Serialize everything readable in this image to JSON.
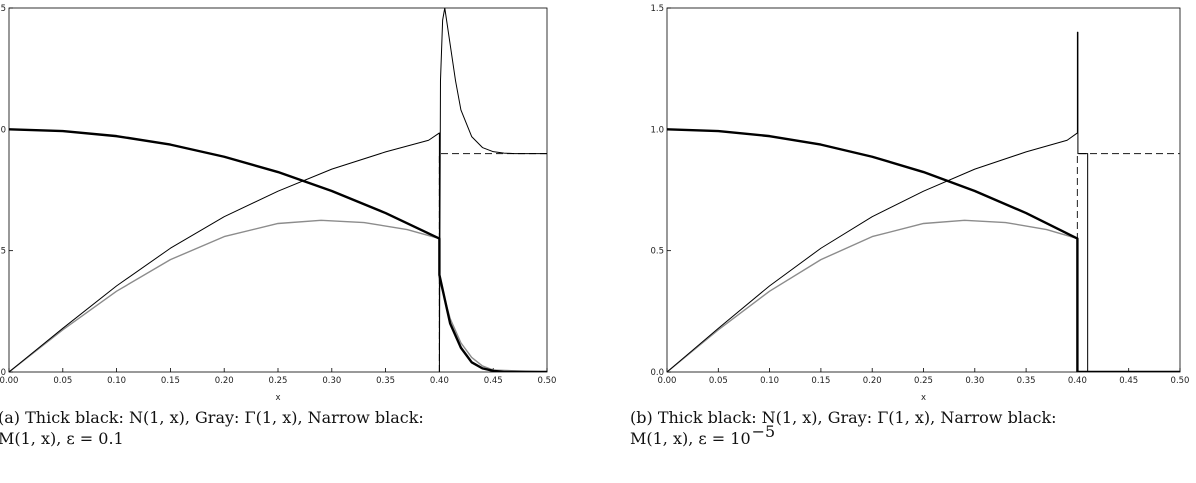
{
  "chart_data": [
    {
      "type": "line",
      "xlabel": "x",
      "ylabel": "",
      "xlim": [
        0.0,
        0.5
      ],
      "ylim": [
        0.0,
        1.5
      ],
      "xticks": [
        "0.00",
        "0.05",
        "0.10",
        "0.15",
        "0.20",
        "0.25",
        "0.30",
        "0.35",
        "0.40",
        "0.45",
        "0.50"
      ],
      "yticks": [
        "0.0",
        "0.5",
        "1.0",
        "1.5"
      ],
      "caption_line1": "(a) Thick black:  N(1, x),  Gray:  Γ(1, x),  Narrow black:",
      "caption_line2": "M(1, x),  ε = 0.1",
      "series": [
        {
          "key": "N",
          "style": "thick-black",
          "x": [
            0,
            0.05,
            0.1,
            0.15,
            0.2,
            0.25,
            0.3,
            0.35,
            0.4,
            0.4,
            0.405,
            0.41,
            0.42,
            0.43,
            0.44,
            0.45,
            0.46,
            0.5
          ],
          "y": [
            1.0,
            0.993,
            0.972,
            0.937,
            0.887,
            0.824,
            0.746,
            0.655,
            0.55,
            0.4,
            0.3,
            0.2,
            0.1,
            0.04,
            0.015,
            0.005,
            0.0,
            0.0
          ]
        },
        {
          "key": "Gamma",
          "style": "gray",
          "x": [
            0,
            0.05,
            0.1,
            0.15,
            0.2,
            0.25,
            0.29,
            0.33,
            0.37,
            0.4,
            0.4,
            0.405,
            0.41,
            0.42,
            0.43,
            0.44,
            0.45,
            0.5
          ],
          "y": [
            0.0,
            0.174,
            0.333,
            0.463,
            0.558,
            0.612,
            0.625,
            0.616,
            0.587,
            0.55,
            0.38,
            0.3,
            0.22,
            0.12,
            0.06,
            0.025,
            0.008,
            0.0
          ]
        },
        {
          "key": "M",
          "style": "narrow-black",
          "x": [
            0,
            0.05,
            0.1,
            0.15,
            0.2,
            0.25,
            0.3,
            0.35,
            0.39,
            0.4,
            0.4,
            0.401,
            0.403,
            0.405,
            0.41,
            0.415,
            0.42,
            0.43,
            0.44,
            0.45,
            0.46,
            0.47,
            0.5
          ],
          "y": [
            0.0,
            0.18,
            0.355,
            0.51,
            0.64,
            0.745,
            0.836,
            0.907,
            0.955,
            0.985,
            0.0,
            1.2,
            1.45,
            1.5,
            1.35,
            1.2,
            1.08,
            0.97,
            0.925,
            0.908,
            0.902,
            0.9,
            0.9
          ]
        },
        {
          "key": "M-dashed",
          "style": "dashed",
          "x": [
            0.4,
            0.4,
            0.5
          ],
          "y": [
            0.0,
            0.9,
            0.9
          ]
        }
      ]
    },
    {
      "type": "line",
      "xlabel": "x",
      "ylabel": "",
      "xlim": [
        0.0,
        0.5
      ],
      "ylim": [
        0.0,
        1.5
      ],
      "xticks": [
        "0.00",
        "0.05",
        "0.10",
        "0.15",
        "0.20",
        "0.25",
        "0.30",
        "0.35",
        "0.40",
        "0.45",
        "0.50"
      ],
      "yticks": [
        "0.0",
        "0.5",
        "1.0",
        "1.5"
      ],
      "caption_line1": "(b) Thick black:  N(1, x),  Gray:  Γ(1, x),  Narrow black:",
      "caption_line2": "M(1, x),  ε = 10",
      "caption_exp": "−5",
      "series": [
        {
          "key": "N",
          "style": "thick-black",
          "x": [
            0,
            0.05,
            0.1,
            0.15,
            0.2,
            0.25,
            0.3,
            0.35,
            0.4,
            0.4,
            0.5
          ],
          "y": [
            1.0,
            0.993,
            0.972,
            0.937,
            0.887,
            0.824,
            0.746,
            0.655,
            0.55,
            0.0,
            0.0
          ]
        },
        {
          "key": "Gamma",
          "style": "gray",
          "x": [
            0,
            0.05,
            0.1,
            0.15,
            0.2,
            0.25,
            0.29,
            0.33,
            0.37,
            0.4,
            0.4,
            0.5
          ],
          "y": [
            0.0,
            0.174,
            0.333,
            0.463,
            0.558,
            0.612,
            0.625,
            0.616,
            0.587,
            0.55,
            0.0,
            0.0
          ]
        },
        {
          "key": "M",
          "style": "narrow-black",
          "x": [
            0,
            0.05,
            0.1,
            0.15,
            0.2,
            0.25,
            0.3,
            0.35,
            0.39,
            0.4,
            0.4,
            0.4005,
            0.4005,
            0.41,
            0.41,
            0.5
          ],
          "y": [
            0.0,
            0.18,
            0.355,
            0.51,
            0.64,
            0.745,
            0.836,
            0.907,
            0.955,
            0.985,
            1.4,
            1.4,
            0.9,
            0.9,
            0.0,
            0.0
          ]
        },
        {
          "key": "M-dashed",
          "style": "dashed",
          "x": [
            0.4,
            0.4,
            0.5
          ],
          "y": [
            0.0,
            0.9,
            0.9
          ]
        }
      ]
    }
  ]
}
